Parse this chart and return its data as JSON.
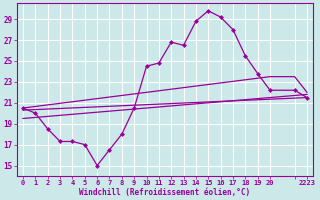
{
  "xlabel": "Windchill (Refroidissement éolien,°C)",
  "background_color": "#cce8e8",
  "grid_color": "#ffffff",
  "line_color": "#990099",
  "ylim": [
    14.0,
    30.5
  ],
  "xlim": [
    -0.5,
    23.5
  ],
  "yticks": [
    15,
    17,
    19,
    21,
    23,
    25,
    27,
    29
  ],
  "xticks": [
    0,
    1,
    2,
    3,
    4,
    5,
    6,
    7,
    8,
    9,
    10,
    11,
    12,
    13,
    14,
    15,
    16,
    17,
    18,
    19,
    20,
    22,
    23
  ],
  "xtick_labels": [
    "0",
    "1",
    "2",
    "3",
    "4",
    "5",
    "6",
    "7",
    "8",
    "9",
    "10",
    "11",
    "12",
    "13",
    "14",
    "15",
    "16",
    "17",
    "18",
    "19",
    "20",
    "",
    "2223"
  ],
  "main_series": {
    "x": [
      0,
      1,
      2,
      3,
      4,
      5,
      6,
      7,
      8,
      9,
      10,
      11,
      12,
      13,
      14,
      15,
      16,
      17,
      18,
      19,
      20,
      22,
      23
    ],
    "y": [
      20.5,
      20.0,
      18.5,
      17.3,
      17.3,
      17.0,
      15.0,
      16.5,
      18.0,
      20.5,
      24.5,
      24.8,
      26.8,
      26.5,
      28.8,
      29.8,
      29.2,
      28.0,
      25.5,
      23.8,
      22.2,
      22.2,
      21.5
    ]
  },
  "trend_line1": {
    "x": [
      0,
      23
    ],
    "y": [
      20.3,
      21.5
    ]
  },
  "trend_line2": {
    "x": [
      0,
      23
    ],
    "y": [
      19.5,
      21.8
    ]
  },
  "trend_line3": {
    "x": [
      0,
      20,
      22,
      23
    ],
    "y": [
      20.5,
      23.5,
      23.5,
      22.0
    ]
  }
}
